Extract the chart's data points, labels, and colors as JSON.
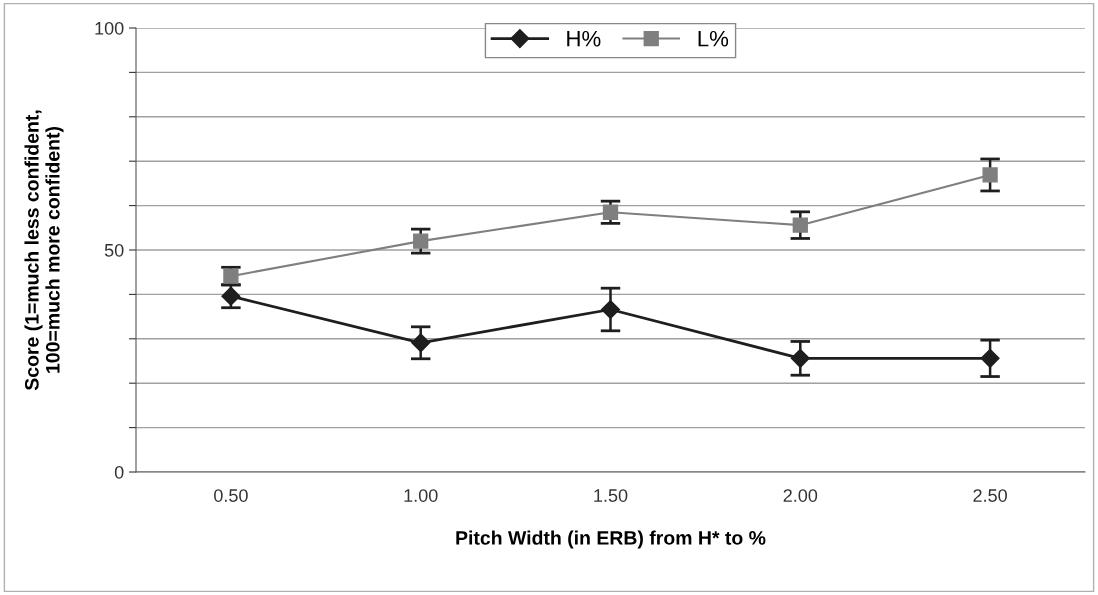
{
  "chart_data": {
    "type": "line",
    "xlabel": "Pitch Width (in ERB) from H* to %",
    "ylabel": "Score (1=much less confident,\n100=much more confident)",
    "categories": [
      "0.50",
      "1.00",
      "1.50",
      "2.00",
      "2.50"
    ],
    "series": [
      {
        "name": "H%",
        "color": "#1e1e1e",
        "marker": "diamond",
        "values": [
          39.6,
          29.1,
          36.6,
          25.6,
          25.6
        ],
        "errors": [
          2.6,
          3.6,
          4.8,
          3.8,
          4.1
        ]
      },
      {
        "name": "L%",
        "color": "#7f7f7f",
        "marker": "square",
        "values": [
          44.1,
          52.0,
          58.5,
          55.6,
          66.9
        ],
        "errors": [
          2.0,
          2.7,
          2.5,
          3.0,
          3.6
        ]
      }
    ],
    "ylim": [
      0,
      100
    ],
    "yticks": [
      0,
      {
        "value": 10,
        "label": null
      },
      {
        "value": 20,
        "label": null
      },
      {
        "value": 30,
        "label": null
      },
      {
        "value": 40,
        "label": null
      },
      50,
      {
        "value": 60,
        "label": null
      },
      {
        "value": 70,
        "label": null
      },
      {
        "value": 80,
        "label": null
      },
      {
        "value": 90,
        "label": null
      },
      100
    ],
    "grid": "y",
    "legend": "top"
  }
}
